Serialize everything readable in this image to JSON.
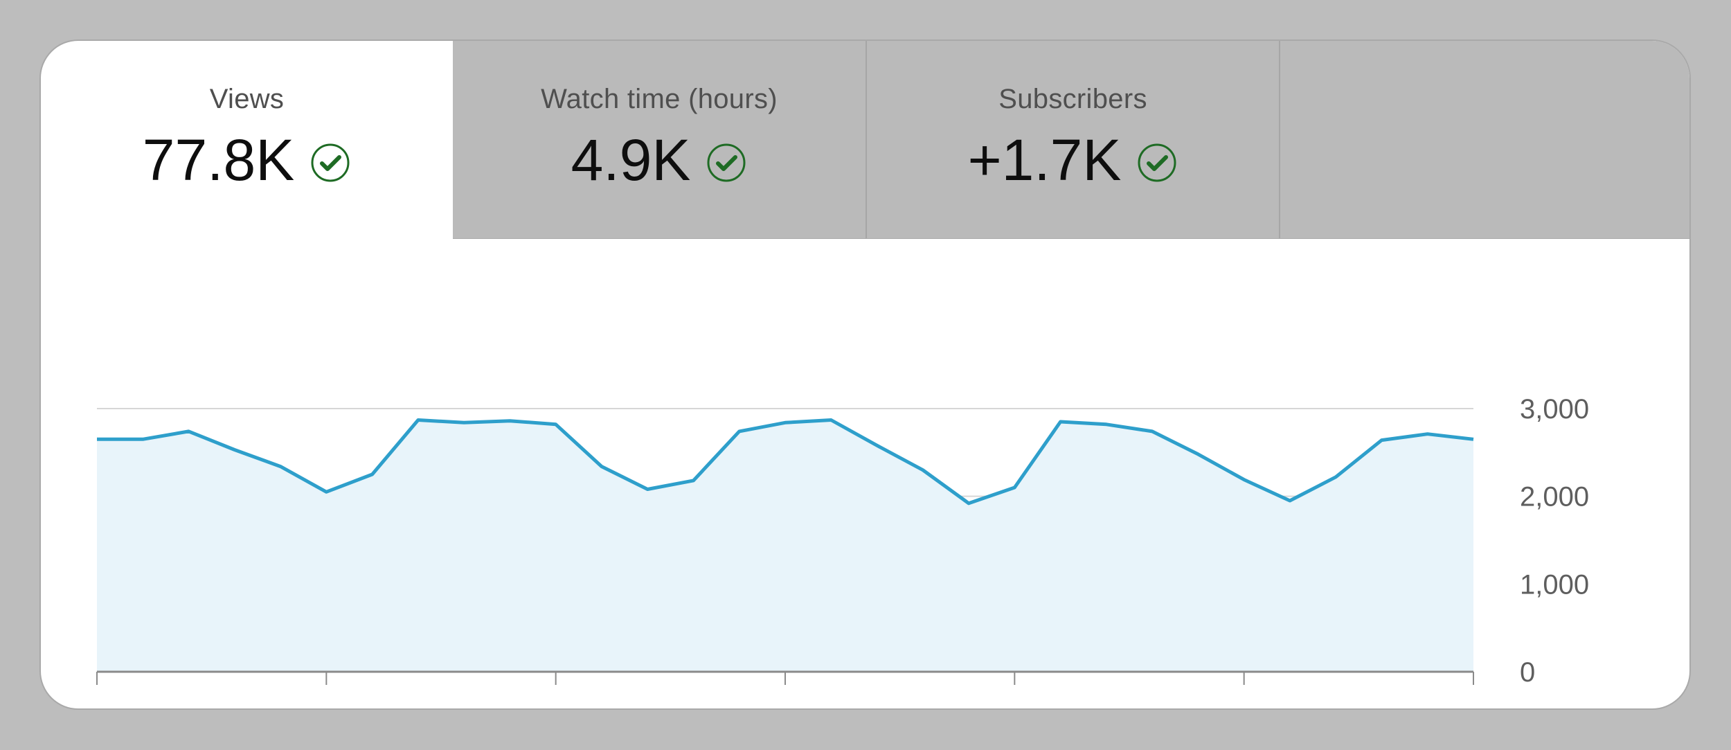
{
  "metrics": {
    "views": {
      "label": "Views",
      "value": "77.8K",
      "status_icon": "check-circle-icon"
    },
    "watch_time": {
      "label": "Watch time (hours)",
      "value": "4.9K",
      "status_icon": "check-circle-icon"
    },
    "subscribers": {
      "label": "Subscribers",
      "value": "+1.7K",
      "status_icon": "check-circle-icon"
    }
  },
  "colors": {
    "line": "#2e9fcb",
    "area": "#e8f4fa",
    "check": "#1e6b24",
    "grid": "#d6d6d6",
    "axis": "#8a8a8a"
  },
  "chart_data": {
    "type": "area",
    "x": [
      0,
      1,
      2,
      3,
      4,
      5,
      6,
      7,
      8,
      9,
      10,
      11,
      12,
      13,
      14,
      15,
      16,
      17,
      18,
      19,
      20,
      21,
      22,
      23,
      24,
      25,
      26,
      27,
      28,
      29,
      30
    ],
    "values": [
      2650,
      2650,
      2740,
      2530,
      2340,
      2050,
      2250,
      2870,
      2840,
      2860,
      2820,
      2340,
      2080,
      2180,
      2740,
      2840,
      2870,
      2580,
      2300,
      1920,
      2100,
      2850,
      2820,
      2740,
      2480,
      2190,
      1950,
      2220,
      2640,
      2710,
      2650
    ],
    "ylim": [
      0,
      3000
    ],
    "yticks": [
      "3,000",
      "2,000",
      "1,000",
      "0"
    ],
    "ytick_values": [
      3000,
      2000,
      1000,
      0
    ],
    "grid": true,
    "yaxis_position": "right"
  }
}
